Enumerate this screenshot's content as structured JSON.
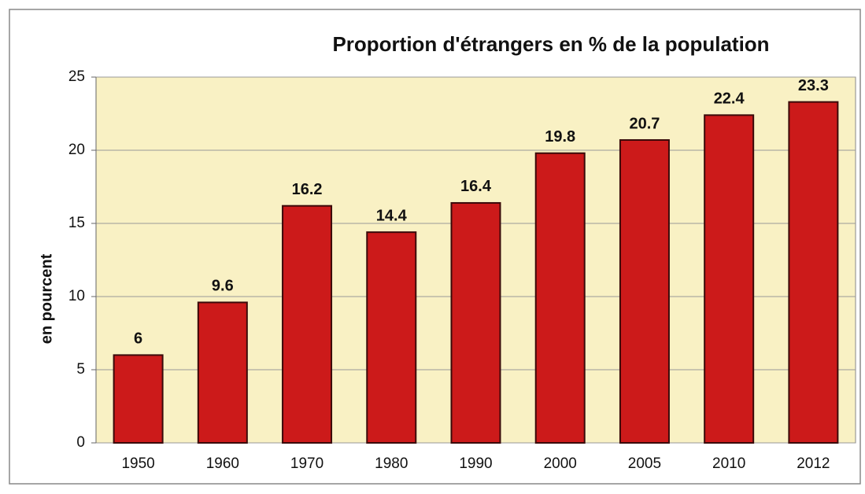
{
  "chart_data": {
    "type": "bar",
    "title": "Proportion d'étrangers en % de la population",
    "y_label": "en  pourcent",
    "categories": [
      "1950",
      "1960",
      "1970",
      "1980",
      "1990",
      "2000",
      "2005",
      "2010",
      "2012"
    ],
    "values": [
      6,
      9.6,
      16.2,
      14.4,
      16.4,
      19.8,
      20.7,
      22.4,
      23.3
    ],
    "color": "#cc1a1a",
    "ylim": [
      0,
      25
    ],
    "yticks": [
      0,
      5,
      10,
      15,
      20,
      25
    ],
    "grid": true
  }
}
